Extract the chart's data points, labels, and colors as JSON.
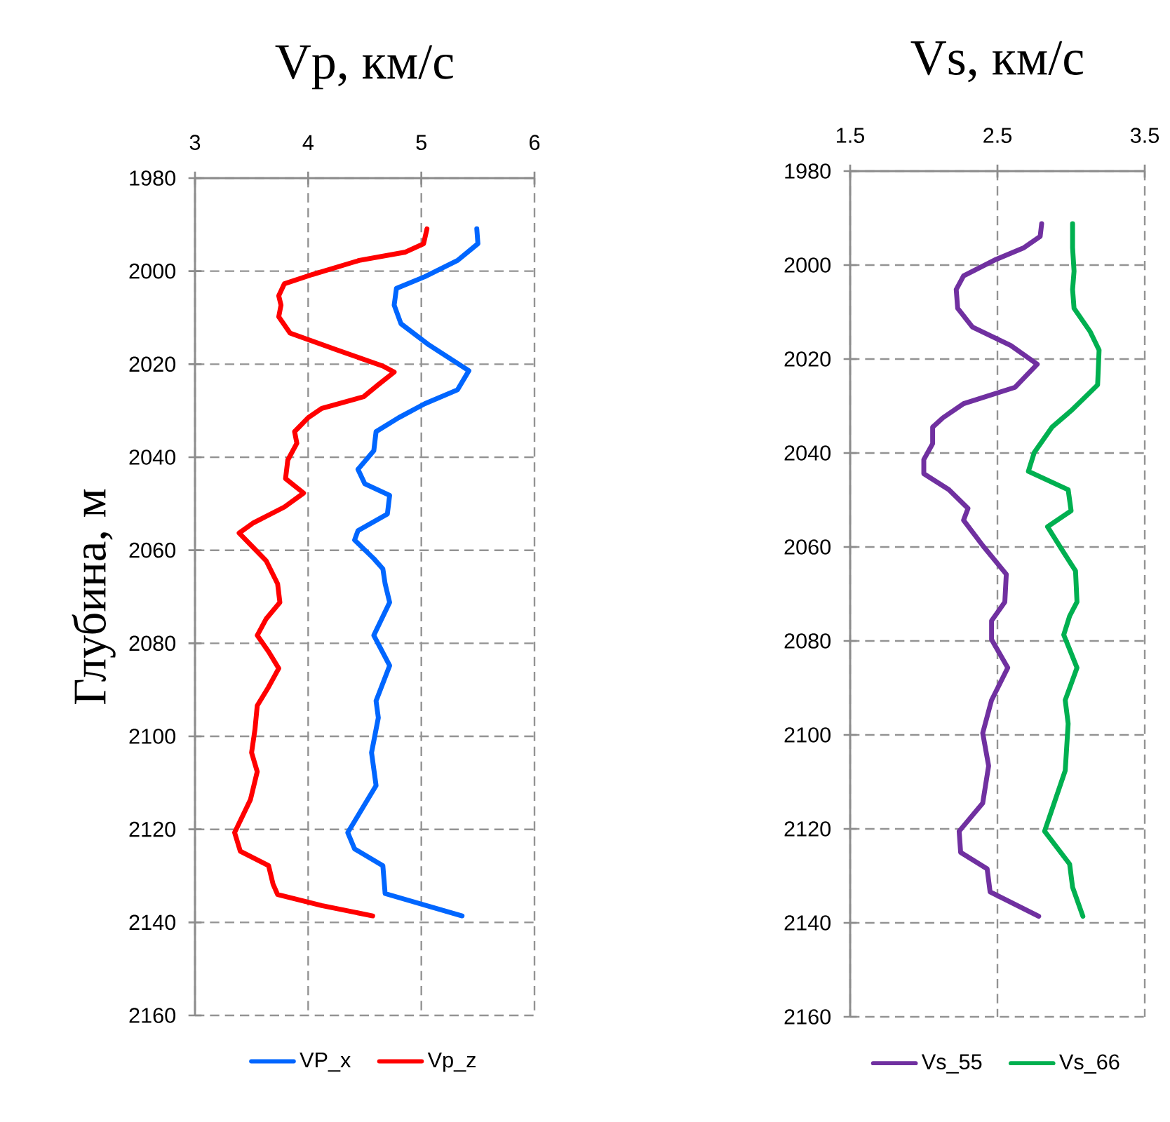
{
  "chart_data": [
    {
      "type": "line",
      "title": "Vp, км/с",
      "ylabel": "Глубина, м",
      "xlim": [
        3,
        6
      ],
      "xticks": [
        3,
        4,
        5,
        6
      ],
      "ylim": [
        2160,
        1980
      ],
      "yticks": [
        1980,
        2000,
        2020,
        2040,
        2060,
        2080,
        2100,
        2120,
        2140,
        2160
      ],
      "grid": true,
      "legend": "bottom",
      "line_style": "solid",
      "marker": "none",
      "series": [
        {
          "name": "VP_x",
          "color": "#0066ff",
          "x": [
            5.49,
            5.5,
            5.32,
            5.03,
            4.78,
            4.76,
            4.82,
            5.07,
            5.42,
            5.32,
            5.03,
            4.8,
            4.6,
            4.58,
            4.44,
            4.5,
            4.72,
            4.7,
            4.44,
            4.41,
            4.58,
            4.66,
            4.68,
            4.72,
            4.58,
            4.72,
            4.6,
            4.62,
            4.56,
            4.6,
            4.35,
            4.41,
            4.66,
            4.68,
            5.36
          ],
          "values": [
            1990.9,
            1994.1,
            1997.7,
            2001.2,
            2003.7,
            2007.3,
            2011.3,
            2015.9,
            2021.4,
            2025.5,
            2028.5,
            2031.5,
            2034.5,
            2038.6,
            2042.6,
            2045.7,
            2048.2,
            2052.2,
            2055.8,
            2057.8,
            2061.8,
            2064.0,
            2067.2,
            2071.2,
            2078.3,
            2084.8,
            2092.4,
            2096.0,
            2103.5,
            2110.6,
            2120.7,
            2124.2,
            2127.8,
            2133.8,
            2138.6
          ]
        },
        {
          "name": "Vp_z",
          "color": "#ff0000",
          "x": [
            5.05,
            5.02,
            4.86,
            4.45,
            4.04,
            3.79,
            3.74,
            3.76,
            3.74,
            3.84,
            4.25,
            4.66,
            4.76,
            4.62,
            4.49,
            4.12,
            4.0,
            3.88,
            3.9,
            3.82,
            3.8,
            3.96,
            3.79,
            3.51,
            3.39,
            3.51,
            3.63,
            3.73,
            3.75,
            3.63,
            3.55,
            3.65,
            3.74,
            3.65,
            3.55,
            3.53,
            3.5,
            3.55,
            3.49,
            3.35,
            3.4,
            3.65,
            3.69,
            3.73,
            4.12,
            4.57
          ],
          "values": [
            1990.9,
            1994.1,
            1995.9,
            1997.7,
            2000.7,
            2002.7,
            2005.3,
            2007.3,
            2009.8,
            2013.3,
            2016.9,
            2020.4,
            2021.7,
            2024.4,
            2027.0,
            2029.5,
            2031.5,
            2034.5,
            2037.0,
            2040.6,
            2044.6,
            2047.7,
            2050.7,
            2054.2,
            2056.3,
            2059.3,
            2062.3,
            2067.2,
            2071.2,
            2074.7,
            2078.3,
            2081.8,
            2085.4,
            2089.4,
            2093.4,
            2098.5,
            2103.5,
            2107.6,
            2113.6,
            2120.7,
            2124.7,
            2127.8,
            2131.8,
            2134.0,
            2136.4,
            2138.6
          ]
        }
      ]
    },
    {
      "type": "line",
      "title": "Vs, км/с",
      "xlim": [
        1.5,
        3.5
      ],
      "xticks": [
        1.5,
        2.5,
        3.5
      ],
      "ylim": [
        2160,
        1980
      ],
      "yticks": [
        1980,
        2000,
        2020,
        2040,
        2060,
        2080,
        2100,
        2120,
        2140,
        2160
      ],
      "grid": true,
      "legend": "bottom",
      "line_style": "solid",
      "marker": "none",
      "series": [
        {
          "name": "Vs_55",
          "color": "#7030a0",
          "x": [
            2.8,
            2.79,
            2.68,
            2.49,
            2.27,
            2.22,
            2.23,
            2.33,
            2.59,
            2.77,
            2.62,
            2.27,
            2.13,
            2.06,
            2.06,
            2.0,
            2.0,
            2.17,
            2.3,
            2.27,
            2.4,
            2.56,
            2.55,
            2.46,
            2.46,
            2.57,
            2.46,
            2.4,
            2.44,
            2.4,
            2.24,
            2.25,
            2.43,
            2.45,
            2.78
          ],
          "values": [
            1991.2,
            1993.9,
            1996.3,
            1998.8,
            2002.3,
            2005.2,
            2009.2,
            2013.2,
            2017.1,
            2021.1,
            2026.0,
            2029.5,
            2032.5,
            2034.5,
            2038.0,
            2041.4,
            2044.4,
            2047.8,
            2051.8,
            2054.3,
            2059.7,
            2065.8,
            2071.7,
            2075.7,
            2079.7,
            2085.7,
            2092.6,
            2099.6,
            2106.6,
            2114.5,
            2120.5,
            2125.0,
            2128.5,
            2133.4,
            2138.6
          ]
        },
        {
          "name": "Vs_66",
          "color": "#00b050",
          "x": [
            3.01,
            3.01,
            3.02,
            3.01,
            3.02,
            3.13,
            3.19,
            3.18,
            3.0,
            2.87,
            2.75,
            2.71,
            2.98,
            3.0,
            2.84,
            2.94,
            3.03,
            3.04,
            2.99,
            2.95,
            3.04,
            2.96,
            2.98,
            2.96,
            2.82,
            2.99,
            3.01,
            3.08
          ],
          "values": [
            1991.2,
            1996.3,
            2001.3,
            2005.2,
            2009.2,
            2014.2,
            2018.1,
            2025.5,
            2031.0,
            2034.5,
            2039.9,
            2043.9,
            2047.8,
            2052.3,
            2055.7,
            2060.7,
            2065.1,
            2071.7,
            2074.7,
            2078.7,
            2085.7,
            2092.6,
            2097.6,
            2107.6,
            2120.5,
            2127.5,
            2132.4,
            2138.6
          ]
        }
      ]
    }
  ]
}
